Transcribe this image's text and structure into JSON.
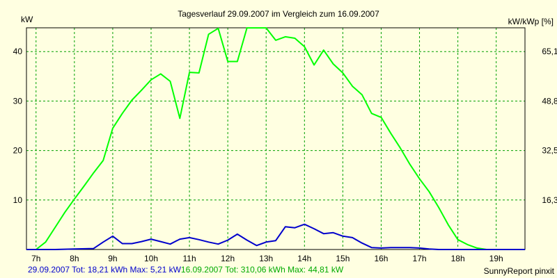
{
  "chart_data": {
    "type": "line",
    "title": "Tagesverlauf 29.09.2007 im Vergleich zum 16.09.2007",
    "ylabel_left": "kW",
    "ylabel_right": "kW/kWp [%]",
    "y_ticks_left": [
      "10",
      "20",
      "30",
      "40"
    ],
    "y_ticks_right": [
      "16,3",
      "32,5",
      "48,8",
      "65,1"
    ],
    "x_ticks": [
      "7h",
      "8h",
      "9h",
      "10h",
      "11h",
      "12h",
      "13h",
      "14h",
      "15h",
      "16h",
      "17h",
      "18h",
      "19h"
    ],
    "xlim": [
      6.75,
      19.75
    ],
    "ylim": [
      0,
      44.81
    ],
    "grid": true,
    "series": [
      {
        "name": "16.09.2007",
        "color": "#00ff00",
        "x": [
          6.75,
          7.0,
          7.25,
          7.5,
          7.75,
          8.0,
          8.25,
          8.5,
          8.75,
          9.0,
          9.25,
          9.5,
          9.75,
          10.0,
          10.25,
          10.5,
          10.75,
          11.0,
          11.25,
          11.5,
          11.75,
          12.0,
          12.25,
          12.5,
          12.75,
          13.0,
          13.25,
          13.5,
          13.75,
          14.0,
          14.25,
          14.5,
          14.75,
          15.0,
          15.25,
          15.5,
          15.75,
          16.0,
          16.25,
          16.5,
          16.75,
          17.0,
          17.25,
          17.5,
          17.75,
          18.0,
          18.25,
          18.5,
          18.75,
          19.0,
          19.25,
          19.5,
          19.75
        ],
        "y": [
          0.0,
          0.0,
          1.5,
          4.5,
          7.5,
          10.2,
          12.8,
          15.5,
          18.0,
          24.5,
          27.5,
          30.2,
          32.2,
          34.3,
          35.5,
          34.0,
          26.5,
          35.8,
          35.7,
          43.5,
          44.7,
          38.0,
          38.0,
          44.8,
          44.8,
          44.8,
          42.3,
          43.0,
          42.7,
          41.0,
          37.3,
          40.3,
          37.5,
          35.7,
          33.0,
          31.3,
          27.5,
          26.7,
          23.5,
          20.5,
          17.2,
          14.3,
          11.7,
          8.5,
          5.0,
          2.0,
          1.0,
          0.3,
          0.0,
          0.0,
          0.0,
          0.0,
          0.0
        ]
      },
      {
        "name": "29.09.2007",
        "color": "#0000cc",
        "x": [
          6.75,
          7.0,
          7.5,
          8.0,
          8.5,
          8.75,
          9.0,
          9.25,
          9.5,
          9.75,
          10.0,
          10.25,
          10.5,
          10.75,
          11.0,
          11.25,
          11.5,
          11.75,
          12.0,
          12.25,
          12.5,
          12.75,
          13.0,
          13.25,
          13.5,
          13.75,
          14.0,
          14.25,
          14.5,
          14.75,
          15.0,
          15.25,
          15.5,
          15.75,
          16.0,
          16.25,
          16.5,
          16.75,
          17.0,
          17.25,
          17.5,
          18.0,
          18.5,
          19.0,
          19.5,
          19.75
        ],
        "y": [
          0.0,
          0.0,
          0.0,
          0.1,
          0.2,
          1.5,
          2.7,
          1.2,
          1.2,
          1.6,
          2.1,
          1.6,
          1.1,
          2.1,
          2.4,
          2.0,
          1.5,
          1.1,
          1.9,
          3.1,
          1.9,
          0.8,
          1.5,
          1.8,
          4.6,
          4.4,
          5.1,
          4.2,
          3.2,
          3.4,
          2.7,
          2.4,
          1.3,
          0.4,
          0.3,
          0.4,
          0.4,
          0.4,
          0.3,
          0.1,
          0.0,
          0.0,
          0.0,
          0.0,
          0.0,
          0.0
        ]
      }
    ]
  },
  "footer": {
    "blue_text": "29.09.2007 Tot: 18,21 kWh Max: 5,21 kW",
    "green_text": "16.09.2007 Tot: 310,06 kWh Max: 44,81 kW",
    "credit": "SunnyReport pinxit"
  }
}
